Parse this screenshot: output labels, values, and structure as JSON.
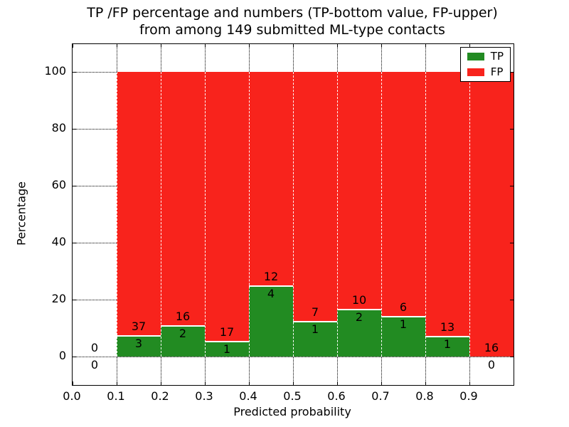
{
  "figure": {
    "title_line1": "TP /FP percentage and numbers (TP-bottom value, FP-upper)",
    "title_line2": "from among 149 submitted ML-type contacts",
    "xlabel": "Predicted probability",
    "ylabel": "Percentage"
  },
  "legend": {
    "items": [
      {
        "label": "TP",
        "color": "#228b22"
      },
      {
        "label": "FP",
        "color": "#f8231c"
      }
    ]
  },
  "chart_data": {
    "type": "bar",
    "stacked": true,
    "title": "TP /FP percentage and numbers (TP-bottom value, FP-upper) from among 149 submitted ML-type contacts",
    "xlabel": "Predicted probability",
    "ylabel": "Percentage",
    "xlim": [
      0.0,
      1.0
    ],
    "ylim": [
      -10,
      110
    ],
    "x_ticks": [
      "0.0",
      "0.1",
      "0.2",
      "0.3",
      "0.4",
      "0.5",
      "0.6",
      "0.7",
      "0.8",
      "0.9"
    ],
    "y_ticks": [
      0,
      20,
      40,
      60,
      80,
      100
    ],
    "grid": true,
    "legend_position": "upper right",
    "total_contacts": 149,
    "series_names": [
      "TP",
      "FP"
    ],
    "colors": {
      "tp": "#228b22",
      "fp": "#f8231c"
    },
    "bins": [
      {
        "range": [
          0.0,
          0.1
        ],
        "tp_count": 0,
        "fp_count": 0,
        "tp_pct": 0,
        "fp_pct": 0
      },
      {
        "range": [
          0.1,
          0.2
        ],
        "tp_count": 3,
        "fp_count": 37,
        "tp_pct": 7.5,
        "fp_pct": 92.5
      },
      {
        "range": [
          0.2,
          0.3
        ],
        "tp_count": 2,
        "fp_count": 16,
        "tp_pct": 11.11,
        "fp_pct": 88.89
      },
      {
        "range": [
          0.3,
          0.4
        ],
        "tp_count": 1,
        "fp_count": 17,
        "tp_pct": 5.56,
        "fp_pct": 94.44
      },
      {
        "range": [
          0.4,
          0.5
        ],
        "tp_count": 4,
        "fp_count": 12,
        "tp_pct": 25.0,
        "fp_pct": 75.0
      },
      {
        "range": [
          0.5,
          0.6
        ],
        "tp_count": 1,
        "fp_count": 7,
        "tp_pct": 12.5,
        "fp_pct": 87.5
      },
      {
        "range": [
          0.6,
          0.7
        ],
        "tp_count": 2,
        "fp_count": 10,
        "tp_pct": 16.67,
        "fp_pct": 83.33
      },
      {
        "range": [
          0.7,
          0.8
        ],
        "tp_count": 1,
        "fp_count": 6,
        "tp_pct": 14.29,
        "fp_pct": 85.71
      },
      {
        "range": [
          0.8,
          0.9
        ],
        "tp_count": 1,
        "fp_count": 13,
        "tp_pct": 7.14,
        "fp_pct": 92.86
      },
      {
        "range": [
          0.9,
          1.0
        ],
        "tp_count": 0,
        "fp_count": 16,
        "tp_pct": 0,
        "fp_pct": 100.0
      }
    ]
  }
}
